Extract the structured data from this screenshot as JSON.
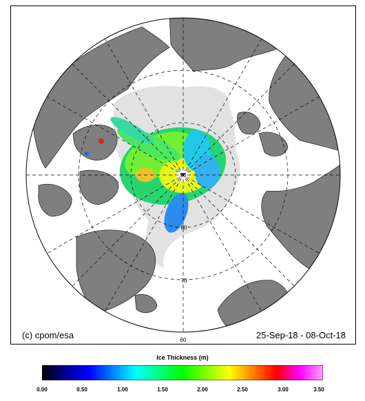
{
  "map": {
    "credit": "(c) cpom/esa",
    "date_range": "25-Sep-18 - 08-Oct-18",
    "latitude_labels": [
      "90",
      "80",
      "70",
      "60"
    ],
    "colors": {
      "land": "#7f7f7f",
      "ocean": "#ffffff",
      "sea_ice_background": "#e2e2e2",
      "graticule": "#000000"
    }
  },
  "colorbar": {
    "title": "Ice Thickness (m)",
    "min": 0.0,
    "max": 3.5,
    "ticks": [
      "0.00",
      "0.50",
      "1.00",
      "1.50",
      "2.00",
      "2.50",
      "3.00",
      "3.50"
    ],
    "palette": [
      "#000000",
      "#000090",
      "#0000ff",
      "#0080ff",
      "#00ffff",
      "#00ff80",
      "#00ff00",
      "#80ff00",
      "#ffff00",
      "#ff8000",
      "#ff0000",
      "#ff00ff",
      "#ffa0ff"
    ]
  }
}
